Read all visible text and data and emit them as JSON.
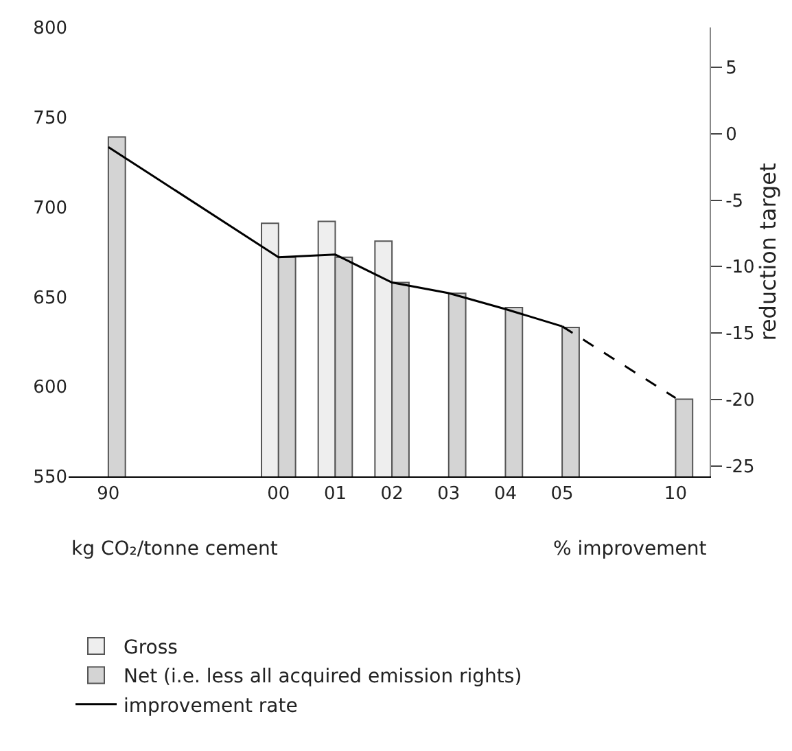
{
  "chart_data": {
    "type": "bar",
    "categories": [
      "90",
      null,
      null,
      "00",
      "01",
      "02",
      "03",
      "04",
      "05",
      null,
      "10"
    ],
    "series": [
      {
        "name": "Gross",
        "color": "#eeeeee",
        "values": [
          null,
          null,
          null,
          691,
          692,
          681,
          null,
          null,
          null,
          null,
          null
        ]
      },
      {
        "name": "Net (i.e. less all acquired emission rights)",
        "color": "#d4d4d4",
        "values": [
          739,
          null,
          null,
          672,
          672,
          658,
          652,
          644,
          633,
          null,
          593
        ]
      },
      {
        "name": "improvement rate",
        "type": "line",
        "axis": "y2",
        "color": "#000000",
        "line_style": "solid",
        "values": [
          -1,
          null,
          null,
          -9.3,
          -9.1,
          -11.2,
          -12,
          -13.2,
          -14.5,
          null,
          null
        ]
      },
      {
        "type": "line",
        "axis": "y2",
        "color": "#000000",
        "line_style": "dashed",
        "values": [
          null,
          null,
          null,
          null,
          null,
          null,
          null,
          null,
          -14.5,
          null,
          -19.9
        ]
      }
    ],
    "ylim": [
      550,
      800
    ],
    "yticks": [
      550,
      600,
      650,
      700,
      750,
      800
    ],
    "y2lim": [
      -25.8,
      8
    ],
    "y2ticks": [
      -25,
      -20,
      -15,
      -10,
      -5,
      0,
      5
    ],
    "y2label": "reduction target",
    "annotations": [
      "kg CO₂/tonne cement",
      "% improvement"
    ],
    "legend": "bottom left",
    "marker": "none"
  }
}
